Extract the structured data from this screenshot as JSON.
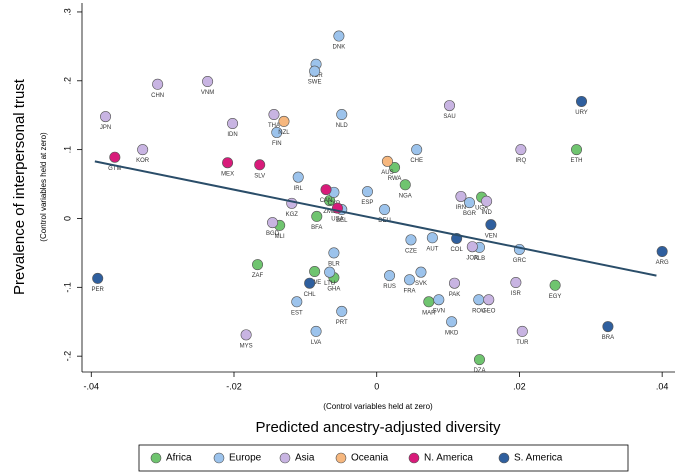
{
  "chart_data": {
    "type": "scatter",
    "y_label": "Prevalence of interpersonal trust",
    "y_sublabel": "(Control variables held at zero)",
    "x_label": "Predicted ancestry-adjusted diversity",
    "x_sublabel": "(Control variables held at zero)",
    "xlim": [
      -0.0413,
      0.0418
    ],
    "ylim": [
      -0.223,
      0.313
    ],
    "xticks": [
      {
        "value": -0.04,
        "label": "-.04"
      },
      {
        "value": -0.02,
        "label": "-.02"
      },
      0,
      {
        "value": 0.02,
        "label": ".02"
      },
      {
        "value": 0.04,
        "label": ".04"
      }
    ],
    "yticks": [
      {
        "value": -0.2,
        "label": "-.2"
      },
      {
        "value": -0.1,
        "label": "-.1"
      },
      0,
      {
        "value": 0.1,
        "label": ".1"
      },
      {
        "value": 0.2,
        "label": ".2"
      },
      {
        "value": 0.3,
        "label": ".3"
      }
    ],
    "fit_line": {
      "color": "#2a4d69",
      "x": [
        -0.0395,
        0.0392
      ],
      "values": [
        0.083,
        -0.083
      ]
    },
    "legend_position": "bottom",
    "series": [
      {
        "name": "Africa",
        "color": "#6fc46f",
        "labels": [
          "ETH",
          "RWA",
          "NGA",
          "ZMB",
          "BFA",
          "MLI",
          "ZAF",
          "GHA",
          "MAR",
          "EGY",
          "DZA",
          "UGA",
          "ZWE"
        ],
        "x": [
          0.028,
          0.0025,
          0.004,
          -0.0066,
          -0.0084,
          -0.0136,
          -0.0167,
          -0.006,
          0.0073,
          0.025,
          0.0144,
          0.0147,
          -0.0087
        ],
        "values": [
          0.1,
          0.074,
          0.049,
          0.026,
          0.003,
          -0.01,
          -0.067,
          -0.086,
          -0.121,
          -0.097,
          -0.205,
          0.031,
          -0.077
        ]
      },
      {
        "name": "Europe",
        "color": "#9cc3ec",
        "labels": [
          "DNK",
          "NOR",
          "SWE",
          "NLD",
          "FIN",
          "IRL",
          "CHE",
          "ESP",
          "CYP",
          "BEL",
          "DEU",
          "BGR",
          "CZE",
          "AUT",
          "ALB",
          "GRC",
          "LTU",
          "LVA",
          "EST",
          "PRT",
          "RUS",
          "FRA",
          "ROU",
          "MKD",
          "SVN",
          "SVK",
          "BLR"
        ],
        "x": [
          -0.0053,
          -0.0085,
          -0.0087,
          -0.0049,
          -0.014,
          -0.011,
          0.0056,
          -0.0013,
          -0.006,
          -0.0049,
          0.0011,
          0.013,
          0.0048,
          0.0078,
          0.0144,
          0.02,
          -0.0066,
          -0.0085,
          -0.0112,
          -0.0049,
          0.0018,
          0.0046,
          0.0143,
          0.0105,
          0.0087,
          0.0062,
          -0.006
        ],
        "values": [
          0.265,
          0.224,
          0.214,
          0.151,
          0.125,
          0.06,
          0.1,
          0.039,
          0.038,
          0.013,
          0.013,
          0.023,
          -0.031,
          -0.028,
          -0.042,
          -0.045,
          -0.078,
          -0.164,
          -0.121,
          -0.135,
          -0.083,
          -0.089,
          -0.118,
          -0.15,
          -0.118,
          -0.078,
          -0.05
        ]
      },
      {
        "name": "Asia",
        "color": "#c8b4e2",
        "labels": [
          "CHN",
          "VNM",
          "JPN",
          "IDN",
          "THA",
          "SAU",
          "IRQ",
          "KOR",
          "IRN",
          "KGZ",
          "BGD",
          "PAK",
          "ISR",
          "GEO",
          "MYS",
          "TUR",
          "JOR",
          "IND"
        ],
        "x": [
          -0.0307,
          -0.0237,
          -0.038,
          -0.0202,
          -0.0144,
          0.0102,
          0.0202,
          -0.0328,
          0.0118,
          -0.0119,
          -0.0146,
          0.0109,
          0.0195,
          0.0157,
          -0.0183,
          0.0204,
          0.0134,
          0.0154
        ],
        "values": [
          0.195,
          0.199,
          0.148,
          0.138,
          0.151,
          0.164,
          0.1,
          0.1,
          0.032,
          0.022,
          -0.006,
          -0.094,
          -0.093,
          -0.118,
          -0.169,
          -0.164,
          -0.041,
          0.025
        ]
      },
      {
        "name": "Oceania",
        "color": "#f6b77e",
        "labels": [
          "NZL",
          "AUS"
        ],
        "x": [
          -0.013,
          0.0015
        ],
        "values": [
          0.141,
          0.083
        ]
      },
      {
        "name": "N. America",
        "color": "#d81b7a",
        "labels": [
          "GTM",
          "MEX",
          "SLV",
          "CAN",
          "USA"
        ],
        "x": [
          -0.0367,
          -0.0209,
          -0.0164,
          -0.0071,
          -0.0055
        ],
        "values": [
          0.089,
          0.081,
          0.078,
          0.042,
          0.015
        ]
      },
      {
        "name": "S. America",
        "color": "#2f5f9e",
        "labels": [
          "URY",
          "PER",
          "ARG",
          "BRA",
          "CHL",
          "COL",
          "VEN"
        ],
        "x": [
          0.0287,
          -0.0391,
          0.04,
          0.0324,
          -0.0094,
          0.0112,
          0.016
        ],
        "values": [
          0.17,
          -0.087,
          -0.048,
          -0.157,
          -0.094,
          -0.029,
          -0.009
        ]
      }
    ]
  }
}
